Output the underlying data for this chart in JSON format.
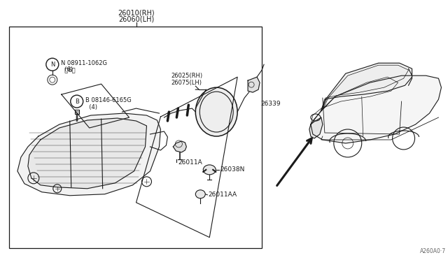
{
  "bg_color": "#ffffff",
  "line_color": "#1a1a1a",
  "fig_width": 6.4,
  "fig_height": 3.72,
  "dpi": 100,
  "title_main": "26010（RH）",
  "title_main2": "26010(RH)",
  "title_sub": "26060(LH)",
  "label_N": "Ⓝ 08911-1062G",
  "label_N2": "  （6）",
  "label_B": "Ⓑ 08146-6165G",
  "label_B2": "    （4）",
  "label_26025": "26025(RH)",
  "label_26075": "26075(LH)",
  "label_26339": "26339",
  "label_26011A": "26011A",
  "label_26038N": "26038N",
  "label_26011AA": "26011AA",
  "watermark": "A260A0·7"
}
